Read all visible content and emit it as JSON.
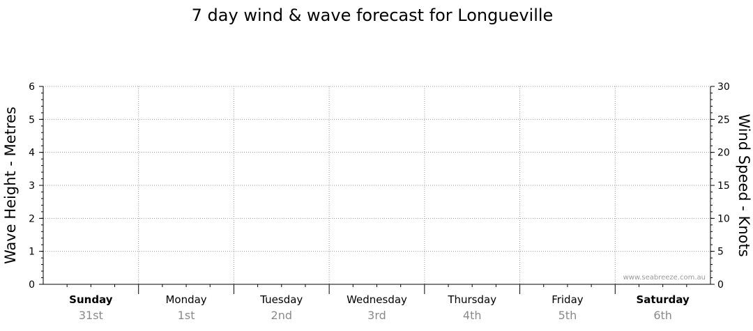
{
  "chart_data": {
    "type": "line",
    "title": "7 day wind & wave forecast for Longueville",
    "ylabel_left": "Wave Height - Metres",
    "ylabel_right": "Wind Speed - Knots",
    "ylim_left": [
      0,
      6
    ],
    "ylim_right": [
      0,
      30
    ],
    "yticks_left": [
      "0",
      "1",
      "2",
      "3",
      "4",
      "5",
      "6"
    ],
    "yticks_right": [
      "0",
      "5",
      "10",
      "15",
      "20",
      "25",
      "30"
    ],
    "grid": true,
    "days": [
      {
        "day": "Sunday",
        "date": "31st",
        "bold": true
      },
      {
        "day": "Monday",
        "date": "1st",
        "bold": false
      },
      {
        "day": "Tuesday",
        "date": "2nd",
        "bold": false
      },
      {
        "day": "Wednesday",
        "date": "3rd",
        "bold": false
      },
      {
        "day": "Thursday",
        "date": "4th",
        "bold": false
      },
      {
        "day": "Friday",
        "date": "5th",
        "bold": false
      },
      {
        "day": "Saturday",
        "date": "6th",
        "bold": true
      }
    ],
    "series": []
  },
  "watermark": "www.seabreeze.com.au"
}
